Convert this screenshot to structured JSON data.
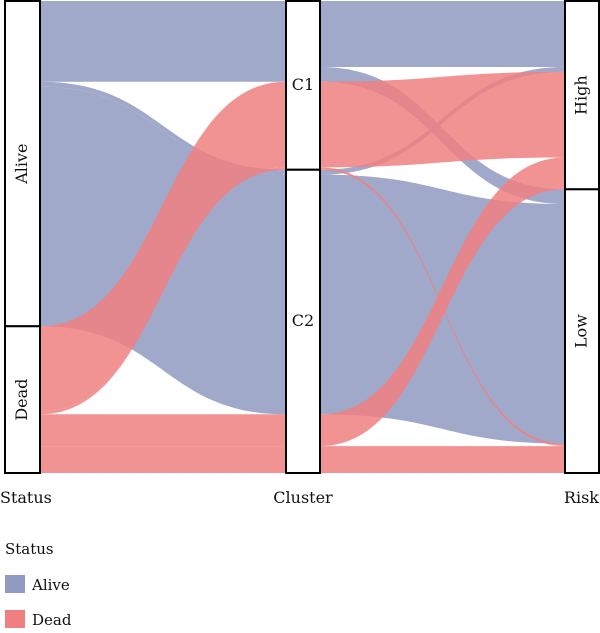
{
  "chart_data": {
    "type": "alluvial",
    "axes": [
      "Status",
      "Cluster",
      "Risk"
    ],
    "nodes": {
      "Status": [
        "Alive",
        "Dead"
      ],
      "Cluster": [
        "C1",
        "C2"
      ],
      "Risk": [
        "High",
        "Low"
      ]
    },
    "flows": [
      {
        "fill": "Alive",
        "Status": "Alive",
        "Cluster": "C1",
        "Risk": "High",
        "value": 27
      },
      {
        "fill": "Alive",
        "Status": "Alive",
        "Cluster": "C1",
        "Risk": "Low",
        "value": 6
      },
      {
        "fill": "Alive",
        "Status": "Alive",
        "Cluster": "C2",
        "Risk": "High",
        "value": 2
      },
      {
        "fill": "Alive",
        "Status": "Alive",
        "Cluster": "C2",
        "Risk": "Low",
        "value": 98
      },
      {
        "fill": "Dead",
        "Status": "Dead",
        "Cluster": "C1",
        "Risk": "High",
        "value": 35
      },
      {
        "fill": "Dead",
        "Status": "Dead",
        "Cluster": "C1",
        "Risk": "Low",
        "value": 1
      },
      {
        "fill": "Dead",
        "Status": "Dead",
        "Cluster": "C2",
        "Risk": "High",
        "value": 13
      },
      {
        "fill": "Dead",
        "Status": "Dead",
        "Cluster": "C2",
        "Risk": "Low",
        "value": 11
      }
    ],
    "legend": {
      "title": "Status",
      "position": "bottom-left",
      "entries": [
        {
          "name": "Alive",
          "color": "#919ac2"
        },
        {
          "name": "Dead",
          "color": "#f08080"
        }
      ]
    }
  }
}
